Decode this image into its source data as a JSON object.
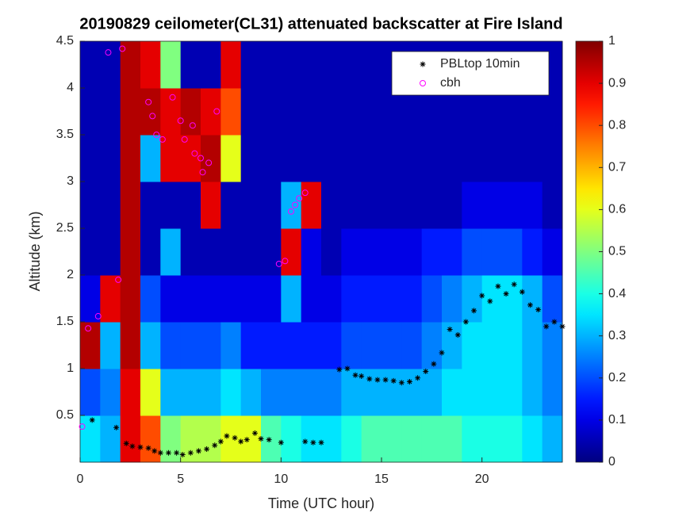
{
  "chart_data": {
    "type": "heatmap",
    "title": "20190829 ceilometer(CL31) attenuated backscatter at Fire Island",
    "xlabel": "Time (UTC hour)",
    "ylabel": "Altitude (km)",
    "xlim": [
      0,
      24
    ],
    "ylim": [
      0,
      4.5
    ],
    "xticks": [
      0,
      5,
      10,
      15,
      20
    ],
    "yticks": [
      0.5,
      1,
      1.5,
      2,
      2.5,
      3,
      3.5,
      4,
      4.5
    ],
    "colormap": "jet",
    "clim": [
      0,
      1
    ],
    "cticks": [
      0,
      0.1,
      0.2,
      0.3,
      0.4,
      0.5,
      0.6,
      0.7,
      0.8,
      0.9,
      1
    ],
    "x_edges": [
      0,
      1,
      2,
      3,
      4,
      5,
      6,
      7,
      8,
      9,
      10,
      11,
      12,
      13,
      14,
      15,
      16,
      17,
      18,
      19,
      20,
      21,
      22,
      23,
      24
    ],
    "y_edges": [
      0,
      0.5,
      1,
      1.5,
      2,
      2.5,
      3,
      3.5,
      4,
      4.5
    ],
    "z": [
      [
        0.35,
        0.3,
        0.9,
        0.8,
        0.5,
        0.55,
        0.55,
        0.6,
        0.6,
        0.45,
        0.4,
        0.35,
        0.35,
        0.4,
        0.45,
        0.45,
        0.45,
        0.45,
        0.45,
        0.4,
        0.4,
        0.4,
        0.35,
        0.3
      ],
      [
        0.2,
        0.25,
        0.9,
        0.6,
        0.3,
        0.3,
        0.3,
        0.35,
        0.3,
        0.25,
        0.25,
        0.25,
        0.25,
        0.3,
        0.3,
        0.3,
        0.3,
        0.3,
        0.35,
        0.35,
        0.35,
        0.35,
        0.3,
        0.25
      ],
      [
        0.95,
        0.3,
        0.95,
        0.3,
        0.2,
        0.2,
        0.2,
        0.25,
        0.15,
        0.15,
        0.15,
        0.15,
        0.15,
        0.2,
        0.2,
        0.2,
        0.2,
        0.25,
        0.3,
        0.35,
        0.35,
        0.35,
        0.3,
        0.25
      ],
      [
        0.1,
        0.9,
        0.95,
        0.2,
        0.1,
        0.1,
        0.1,
        0.1,
        0.1,
        0.1,
        0.3,
        0.1,
        0.1,
        0.15,
        0.15,
        0.15,
        0.15,
        0.2,
        0.25,
        0.3,
        0.35,
        0.35,
        0.3,
        0.2
      ],
      [
        0.05,
        0.05,
        0.95,
        0.05,
        0.3,
        0.05,
        0.05,
        0.05,
        0.05,
        0.05,
        0.9,
        0.1,
        0.05,
        0.1,
        0.1,
        0.1,
        0.1,
        0.15,
        0.15,
        0.2,
        0.2,
        0.2,
        0.15,
        0.1
      ],
      [
        0.05,
        0.05,
        0.95,
        0.05,
        0.05,
        0.05,
        0.9,
        0.05,
        0.05,
        0.05,
        0.3,
        0.9,
        0.05,
        0.05,
        0.05,
        0.05,
        0.05,
        0.05,
        0.05,
        0.1,
        0.1,
        0.1,
        0.1,
        0.05
      ],
      [
        0.05,
        0.05,
        0.95,
        0.3,
        0.9,
        0.9,
        0.95,
        0.6,
        0.05,
        0.05,
        0.05,
        0.05,
        0.05,
        0.05,
        0.05,
        0.05,
        0.05,
        0.05,
        0.05,
        0.05,
        0.05,
        0.05,
        0.05,
        0.05
      ],
      [
        0.05,
        0.05,
        0.95,
        0.95,
        0.9,
        0.95,
        0.9,
        0.8,
        0.05,
        0.05,
        0.05,
        0.05,
        0.05,
        0.05,
        0.05,
        0.05,
        0.05,
        0.05,
        0.05,
        0.05,
        0.05,
        0.05,
        0.05,
        0.05
      ],
      [
        0.05,
        0.05,
        0.95,
        0.9,
        0.5,
        0.05,
        0.05,
        0.9,
        0.05,
        0.05,
        0.05,
        0.05,
        0.05,
        0.05,
        0.05,
        0.05,
        0.05,
        0.05,
        0.05,
        0.05,
        0.05,
        0.05,
        0.05,
        0.05
      ]
    ],
    "series": [
      {
        "name": "PBLtop 10min",
        "color": "#000000",
        "marker": "star",
        "x": [
          0.6,
          1.8,
          2.3,
          2.6,
          3,
          3.4,
          3.7,
          4,
          4.4,
          4.8,
          5.1,
          5.5,
          5.9,
          6.3,
          6.7,
          7,
          7.3,
          7.7,
          8,
          8.3,
          8.7,
          9,
          9.4,
          10,
          11.2,
          11.6,
          12,
          12.9,
          13.3,
          13.7,
          14,
          14.4,
          14.8,
          15.2,
          15.6,
          16,
          16.4,
          16.8,
          17.2,
          17.6,
          18,
          18.4,
          18.8,
          19.2,
          19.6,
          20,
          20.4,
          20.8,
          21.2,
          21.6,
          22,
          22.4,
          22.8,
          23.2,
          23.6,
          24
        ],
        "values": [
          0.45,
          0.37,
          0.2,
          0.17,
          0.16,
          0.15,
          0.12,
          0.1,
          0.1,
          0.1,
          0.08,
          0.1,
          0.12,
          0.14,
          0.18,
          0.22,
          0.28,
          0.26,
          0.22,
          0.24,
          0.31,
          0.25,
          0.24,
          0.21,
          0.22,
          0.21,
          0.21,
          0.99,
          1.0,
          0.93,
          0.92,
          0.89,
          0.88,
          0.88,
          0.87,
          0.85,
          0.86,
          0.9,
          0.97,
          1.05,
          1.17,
          1.42,
          1.36,
          1.5,
          1.62,
          1.78,
          1.72,
          1.88,
          1.8,
          1.9,
          1.82,
          1.68,
          1.63,
          1.45,
          1.5,
          1.45
        ]
      },
      {
        "name": "cbh",
        "color": "#ff00ff",
        "marker": "circle",
        "x": [
          0.1,
          0.4,
          0.9,
          1.4,
          1.9,
          2.1,
          3.4,
          3.6,
          3.8,
          4.1,
          4.6,
          5,
          5.2,
          5.6,
          5.7,
          6,
          6.1,
          6.4,
          6.8,
          9.9,
          10.2,
          10.5,
          10.7,
          10.9,
          11.2
        ],
        "values": [
          0.38,
          1.43,
          1.56,
          4.38,
          1.95,
          4.42,
          3.85,
          3.7,
          3.5,
          3.45,
          3.9,
          3.65,
          3.45,
          3.6,
          3.3,
          3.25,
          3.1,
          3.2,
          3.75,
          2.12,
          2.15,
          2.68,
          2.75,
          2.82,
          2.88
        ]
      }
    ]
  }
}
